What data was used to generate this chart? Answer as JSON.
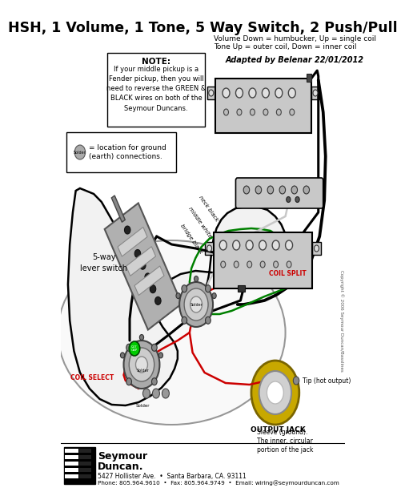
{
  "title": "HSH, 1 Volume, 1 Tone, 5 Way Switch, 2 Push/Pull",
  "subtitle1": "Volume Down = humbucker, Up = single coil",
  "subtitle2": "Tone Up = outer coil, Down = inner coil",
  "adapted": "Adapted by Belenar 22/01/2012",
  "note_title": "NOTE:",
  "note_text": "If your middle pickup is a\nFender pickup, then you will\nneed to reverse the GREEN &\nBLACK wires on both of the\nSeymour Duncans.",
  "legend_text": "= location for ground\n(earth) connections.",
  "switch_label": "5-way\nlever switch",
  "coil_split_label": "COIL SPLIT",
  "coil_select_label": "COIL SELECT",
  "output_jack_label": "OUTPUT JACK",
  "tip_label": "Tip (hot output)",
  "sleeve_label": "Sleeve (ground).\nThe inner, circular\nportion of the jack",
  "neck_black_label": "neck black",
  "middle_white_label": "middle white",
  "bridge_black_label": "bridge black",
  "copyright": "Copyright © 2006 Seymour Duncan/Basslines",
  "footer_name1": "Seymour",
  "footer_name2": "Duncan.",
  "footer_address": "5427 Hollister Ave.  •  Santa Barbara, CA. 93111",
  "footer_contact": "Phone: 805.964.9610  •  Fax: 805.964.9749  •  Email: wiring@seymourduncan.com",
  "bg_color": "#ffffff",
  "title_color": "#000000",
  "red_color": "#cc0000",
  "wire_black": "#000000",
  "wire_red": "#cc0000",
  "wire_green": "#008000",
  "wire_white_gray": "#c0c0c0",
  "pickup_fill": "#cccccc",
  "pickup_stroke": "#000000",
  "jack_gold": "#c8a800",
  "green_dot": "#00cc00",
  "note_box_color": "#ffffff",
  "body_outline": "#000000",
  "body_fill": "#f5f5f5",
  "switch_plate_fill": "#bbbbbb",
  "pot_gray": "#aaaaaa",
  "solder_gray": "#999999"
}
